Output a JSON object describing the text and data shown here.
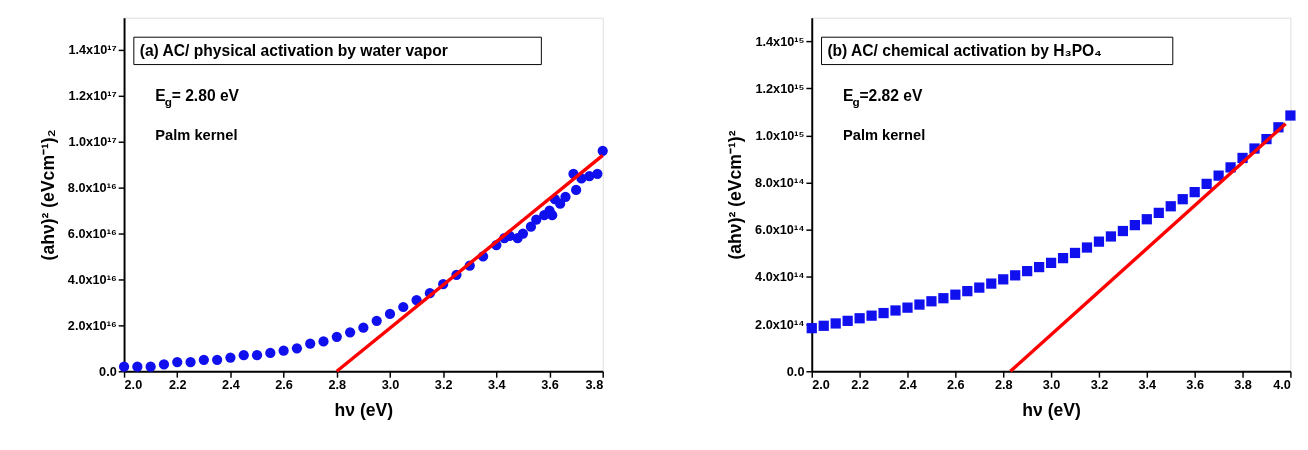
{
  "chart_data": [
    {
      "type": "scatter",
      "title": "(a) AC/ physical activation by water vapor",
      "xlabel": "hν (eV)",
      "ylabel": "(ahν)² (eVcm⁻¹)₂",
      "annotations": [
        "E$_{g}$= 2.80 eV",
        "Palm kernel"
      ],
      "grid": false,
      "xlim": [
        2.0,
        3.8
      ],
      "ylim": [
        0,
        1.54e+17
      ],
      "xticks": [
        {
          "value": 2.0,
          "label": "2.0"
        },
        2.2,
        2.4,
        2.6,
        2.8,
        {
          "value": 3.0,
          "label": "3.0"
        },
        3.2,
        3.4,
        3.6,
        3.8
      ],
      "yticks": [
        {
          "value": 0,
          "label": "0.0"
        },
        {
          "value": 2e+16,
          "label": "2.0x10¹⁶"
        },
        {
          "value": 4e+16,
          "label": "4.0x10¹⁶"
        },
        {
          "value": 6e+16,
          "label": "6.0x10¹⁶"
        },
        {
          "value": 8e+16,
          "label": "8.0x10¹⁶"
        },
        {
          "value": 1e+17,
          "label": "1.0x10¹⁷"
        },
        {
          "value": 1.2e+17,
          "label": "1.2x10¹⁷"
        },
        {
          "value": 1.4e+17,
          "label": "1.4x10¹⁷"
        }
      ],
      "series": [
        {
          "marker": "circle",
          "color": "#1010ee",
          "x": [
            2.0,
            2.05,
            2.1,
            2.15,
            2.2,
            2.25,
            2.3,
            2.35,
            2.4,
            2.45,
            2.5,
            2.55,
            2.6,
            2.65,
            2.7,
            2.75,
            2.8,
            2.85,
            2.9,
            2.95,
            3.0,
            3.05,
            3.1,
            3.15,
            3.2,
            3.25,
            3.3,
            3.35,
            3.4,
            3.43,
            3.45,
            3.48,
            3.5,
            3.53,
            3.55,
            3.58,
            3.6,
            3.61,
            3.62,
            3.64,
            3.66,
            3.69,
            3.7,
            3.72,
            3.75,
            3.78,
            3.8
          ],
          "values": [
            2000000000000000.0,
            2000000000000000.0,
            2000000000000000.0,
            3000000000000000.0,
            4000000000000000.0,
            4000000000000000.0,
            5000000000000000.0,
            5000000000000000.0,
            6000000000000000.0,
            7000000000000000.0,
            7000000000000000.0,
            8000000000000000.0,
            9000000000000000.0,
            1e+16,
            1.2e+16,
            1.3e+16,
            1.5e+16,
            1.7e+16,
            1.9e+16,
            2.2e+16,
            2.5e+16,
            2.8e+16,
            3.1e+16,
            3.4e+16,
            3.8e+16,
            4.2e+16,
            4.6e+16,
            5e+16,
            5.5e+16,
            5.8e+16,
            5.9e+16,
            5.8e+16,
            6e+16,
            6.3e+16,
            6.6e+16,
            6.8e+16,
            7e+16,
            6.8e+16,
            7.5e+16,
            7.3e+16,
            7.6e+16,
            8.6e+16,
            7.9e+16,
            8.4e+16,
            8.5e+16,
            8.6e+16,
            9.6e+16
          ]
        },
        {
          "type": "line",
          "marker": "none",
          "line_style": "solid",
          "color": "#ff0000",
          "x": [
            2.8,
            3.8
          ],
          "values": [
            0,
            9.4e+16
          ]
        }
      ]
    },
    {
      "type": "scatter",
      "title": "(b) AC/ chemical activation by H₃PO₄",
      "xlabel": "hν (eV)",
      "ylabel": "(ahν)² (eVcm⁻¹)²",
      "annotations": [
        "E$_{g}$=2.82 eV",
        "Palm kernel"
      ],
      "grid": false,
      "xlim": [
        2.0,
        4.0
      ],
      "ylim": [
        0,
        1500000000000000.0
      ],
      "xticks": [
        {
          "value": 2.0,
          "label": "2.0"
        },
        2.2,
        2.4,
        2.6,
        2.8,
        {
          "value": 3.0,
          "label": "3.0"
        },
        3.2,
        3.4,
        3.6,
        3.8,
        {
          "value": 4.0,
          "label": "4.0"
        }
      ],
      "yticks": [
        {
          "value": 0,
          "label": "0.0"
        },
        {
          "value": 200000000000000.0,
          "label": "2.0x10¹⁴"
        },
        {
          "value": 400000000000000.0,
          "label": "4.0x10¹⁴"
        },
        {
          "value": 600000000000000.0,
          "label": "6.0x10¹⁴"
        },
        {
          "value": 800000000000000.0,
          "label": "8.0x10¹⁴"
        },
        {
          "value": 1000000000000000.0,
          "label": "1.0x10¹⁵"
        },
        {
          "value": 1200000000000000.0,
          "label": "1.2x10¹⁵"
        },
        {
          "value": 1400000000000000.0,
          "label": "1.4x10¹⁵"
        }
      ],
      "series": [
        {
          "marker": "square",
          "color": "#1010ee",
          "x": [
            2.0,
            2.05,
            2.1,
            2.15,
            2.2,
            2.25,
            2.3,
            2.35,
            2.4,
            2.45,
            2.5,
            2.55,
            2.6,
            2.65,
            2.7,
            2.75,
            2.8,
            2.85,
            2.9,
            2.95,
            3.0,
            3.05,
            3.1,
            3.15,
            3.2,
            3.25,
            3.3,
            3.35,
            3.4,
            3.45,
            3.5,
            3.55,
            3.6,
            3.65,
            3.7,
            3.75,
            3.8,
            3.85,
            3.9,
            3.95,
            4.0
          ],
          "values": [
            183000000000000.0,
            193000000000000.0,
            203000000000000.0,
            214000000000000.0,
            225000000000000.0,
            236000000000000.0,
            247000000000000.0,
            258000000000000.0,
            270000000000000.0,
            283000000000000.0,
            297000000000000.0,
            310000000000000.0,
            325000000000000.0,
            340000000000000.0,
            355000000000000.0,
            372000000000000.0,
            390000000000000.0,
            407000000000000.0,
            425000000000000.0,
            442000000000000.0,
            460000000000000.0,
            480000000000000.0,
            502000000000000.0,
            525000000000000.0,
            550000000000000.0,
            572000000000000.0,
            595000000000000.0,
            620000000000000.0,
            645000000000000.0,
            672000000000000.0,
            700000000000000.0,
            730000000000000.0,
            760000000000000.0,
            795000000000000.0,
            830000000000000.0,
            865000000000000.0,
            905000000000000.0,
            945000000000000.0,
            985000000000000.0,
            1035000000000000.0,
            1085000000000000.0
          ]
        },
        {
          "type": "line",
          "marker": "none",
          "line_style": "solid",
          "color": "#ff0000",
          "x": [
            2.83,
            3.98
          ],
          "values": [
            0,
            1050000000000000.0
          ]
        }
      ]
    }
  ]
}
